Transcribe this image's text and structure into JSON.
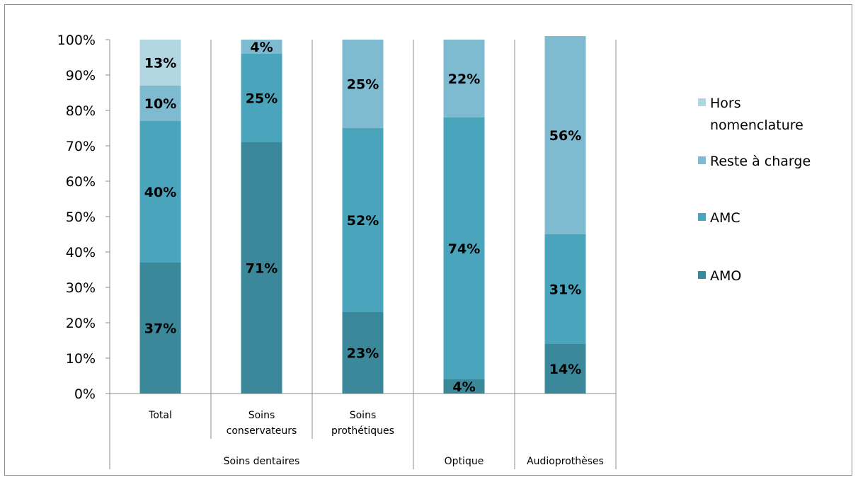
{
  "chart_data": {
    "type": "bar",
    "stacked": true,
    "percent": true,
    "categories": [
      "Total",
      "Soins conservateurs",
      "Soins prothétiques",
      "Optique",
      "Audioprothèses"
    ],
    "category_lines": [
      [
        "Total"
      ],
      [
        "Soins",
        "conservateurs"
      ],
      [
        "Soins",
        "prothétiques"
      ],
      [
        ""
      ],
      [
        ""
      ]
    ],
    "groups": [
      {
        "label": "Soins dentaires",
        "categories": [
          0,
          1,
          2
        ]
      },
      {
        "label": "Optique",
        "categories": [
          3
        ]
      },
      {
        "label": "Audioprothèses",
        "categories": [
          4
        ]
      }
    ],
    "series": [
      {
        "name": "AMO",
        "color": "#3a8899",
        "values": [
          37,
          71,
          23,
          4,
          14
        ],
        "labels": [
          "37%",
          "71%",
          "23%",
          "4%",
          "14%"
        ]
      },
      {
        "name": "AMC",
        "color": "#4aa5bc",
        "values": [
          40,
          25,
          52,
          74,
          31
        ],
        "labels": [
          "40%",
          "25%",
          "52%",
          "74%",
          "31%"
        ]
      },
      {
        "name": "Reste à charge",
        "color": "#7ebbd0",
        "values": [
          10,
          4,
          25,
          22,
          56
        ],
        "labels": [
          "10%",
          "4%",
          "25%",
          "22%",
          "56%"
        ]
      },
      {
        "name": "Hors nomenclature",
        "color": "#b1d5e1",
        "values": [
          13,
          0,
          0,
          0,
          0
        ],
        "labels": [
          "13%",
          "",
          "",
          "",
          ""
        ]
      }
    ],
    "ylim": [
      0,
      100
    ],
    "yticks": [
      "0%",
      "10%",
      "20%",
      "30%",
      "40%",
      "50%",
      "60%",
      "70%",
      "80%",
      "90%",
      "100%"
    ],
    "legend": {
      "position": "right",
      "entries": [
        {
          "lines": [
            "Hors",
            "nomenclature"
          ],
          "series": 3
        },
        {
          "lines": [
            "Reste à charge"
          ],
          "series": 2
        },
        {
          "lines": [
            "AMC"
          ],
          "series": 1
        },
        {
          "lines": [
            "AMO"
          ],
          "series": 0
        }
      ]
    },
    "grid": "vertical-category-separators"
  }
}
